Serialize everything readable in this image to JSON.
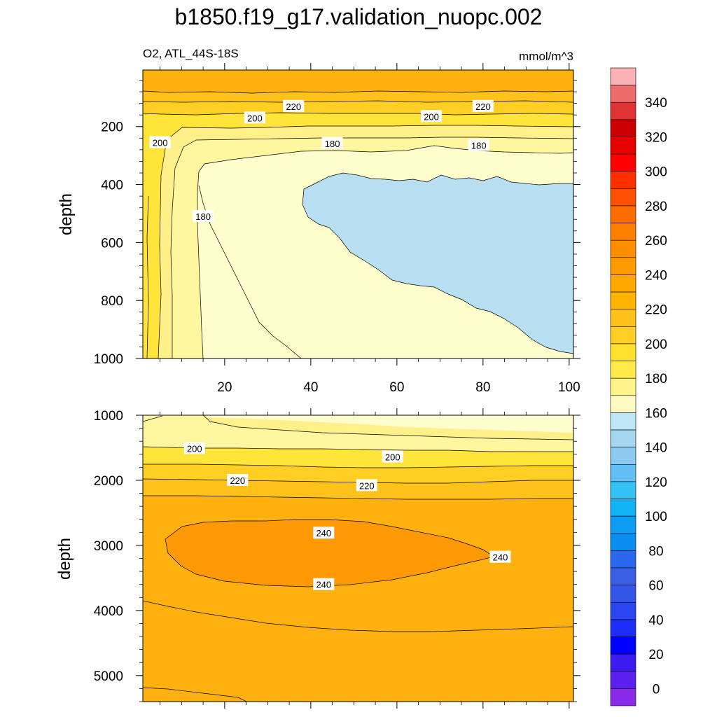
{
  "title": "b1850.f19_g17.validation_nuopc.002",
  "variable_label": "O2, ATL_44S-18S",
  "units_label": "mmol/m^3",
  "colors": {
    "band_160_180": "#fffecc",
    "band_180_190": "#fff6a0",
    "band_190_200": "#fff08a",
    "band_200_210": "#ffe43a",
    "band_210_220": "#ffd023",
    "band_220_230": "#ffc21a",
    "band_230_240": "#ffb10f",
    "band_240_250": "#ff9a06",
    "band_below_160": "#b9e0f2"
  },
  "chart_data": [
    {
      "type": "contour",
      "panel": "upper",
      "xlabel": "",
      "ylabel": "depth",
      "xlim": [
        1,
        101
      ],
      "ylim": [
        1000,
        5
      ],
      "x_ticks": [
        20,
        40,
        60,
        80,
        100
      ],
      "x_tick_labels": [
        "20",
        "40",
        "60",
        "80",
        "100"
      ],
      "y_ticks": [
        200,
        400,
        600,
        800,
        1000
      ],
      "y_tick_labels": [
        "200",
        "400",
        "600",
        "800",
        "1000"
      ],
      "contour_labels": [
        {
          "text": "220",
          "x": 36,
          "y": 130
        },
        {
          "text": "220",
          "x": 80,
          "y": 130
        },
        {
          "text": "200",
          "x": 27,
          "y": 170
        },
        {
          "text": "200",
          "x": 68,
          "y": 165
        },
        {
          "text": "200",
          "x": 5,
          "y": 255
        },
        {
          "text": "180",
          "x": 45,
          "y": 258
        },
        {
          "text": "180",
          "x": 79,
          "y": 265
        },
        {
          "text": "180",
          "x": 15,
          "y": 510
        }
      ]
    },
    {
      "type": "contour",
      "panel": "lower",
      "xlabel": "",
      "ylabel": "depth",
      "xlim": [
        1,
        101
      ],
      "ylim": [
        5400,
        1000
      ],
      "y_ticks": [
        1000,
        2000,
        3000,
        4000,
        5000
      ],
      "y_tick_labels": [
        "1000",
        "2000",
        "3000",
        "4000",
        "5000"
      ],
      "contour_labels": [
        {
          "text": "200",
          "x": 13,
          "y": 1510
        },
        {
          "text": "200",
          "x": 59,
          "y": 1640
        },
        {
          "text": "220",
          "x": 23,
          "y": 2000
        },
        {
          "text": "220",
          "x": 53,
          "y": 2080
        },
        {
          "text": "240",
          "x": 43,
          "y": 2810
        },
        {
          "text": "240",
          "x": 43,
          "y": 3600
        },
        {
          "text": "240",
          "x": 84,
          "y": 3180
        }
      ]
    }
  ],
  "colorbar": {
    "labels": [
      "340",
      "320",
      "300",
      "280",
      "260",
      "240",
      "220",
      "200",
      "180",
      "160",
      "140",
      "120",
      "100",
      "80",
      "60",
      "40",
      "20",
      "0"
    ],
    "box_colors": [
      "#fbb2b4",
      "#ec6b6b",
      "#e03434",
      "#cc0000",
      "#e60000",
      "#ff0000",
      "#ff2f00",
      "#ff4f00",
      "#ff6d00",
      "#ff7f00",
      "#ff8d00",
      "#ff9a00",
      "#ffa800",
      "#ffb500",
      "#ffc11a",
      "#ffcf26",
      "#ffe02c",
      "#ffea4a",
      "#fff48a",
      "#fffac3",
      "#bfe6f4",
      "#a4d6ef",
      "#8ccaf2",
      "#62bff5",
      "#33c3f5",
      "#12b3f5",
      "#0d9cf2",
      "#0a8ef0",
      "#2a69ee",
      "#3a5fe6",
      "#3556ea",
      "#2b45f0",
      "#1d2df5",
      "#0000ff",
      "#3d1aee",
      "#5b1ff0",
      "#8a2be9"
    ]
  }
}
